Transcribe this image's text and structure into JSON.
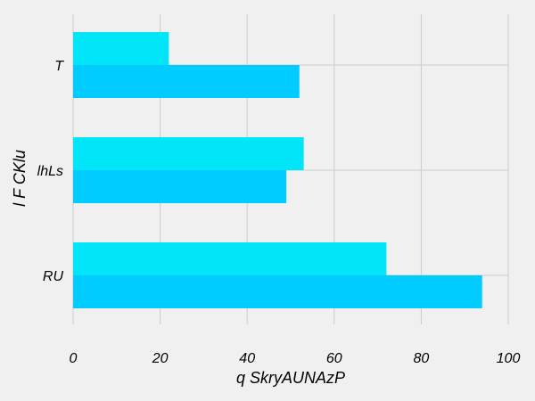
{
  "chart_data": {
    "type": "bar",
    "orientation": "horizontal",
    "categories": [
      "RU",
      "lhLs",
      "T"
    ],
    "series": [
      {
        "values": [
          94,
          49,
          52
        ],
        "color": "#00ccff"
      },
      {
        "values": [
          72,
          53,
          22
        ],
        "color": "#00e5f7"
      }
    ],
    "xlabel": "q SkryAUNAzP",
    "ylabel": "l F CKlu",
    "xlim": [
      0,
      100
    ],
    "xticks": [
      0,
      20,
      40,
      60,
      80,
      100
    ],
    "grid": true,
    "legend": "none",
    "background": "#f0f0f0",
    "grid_color": "#cbcbcb"
  }
}
